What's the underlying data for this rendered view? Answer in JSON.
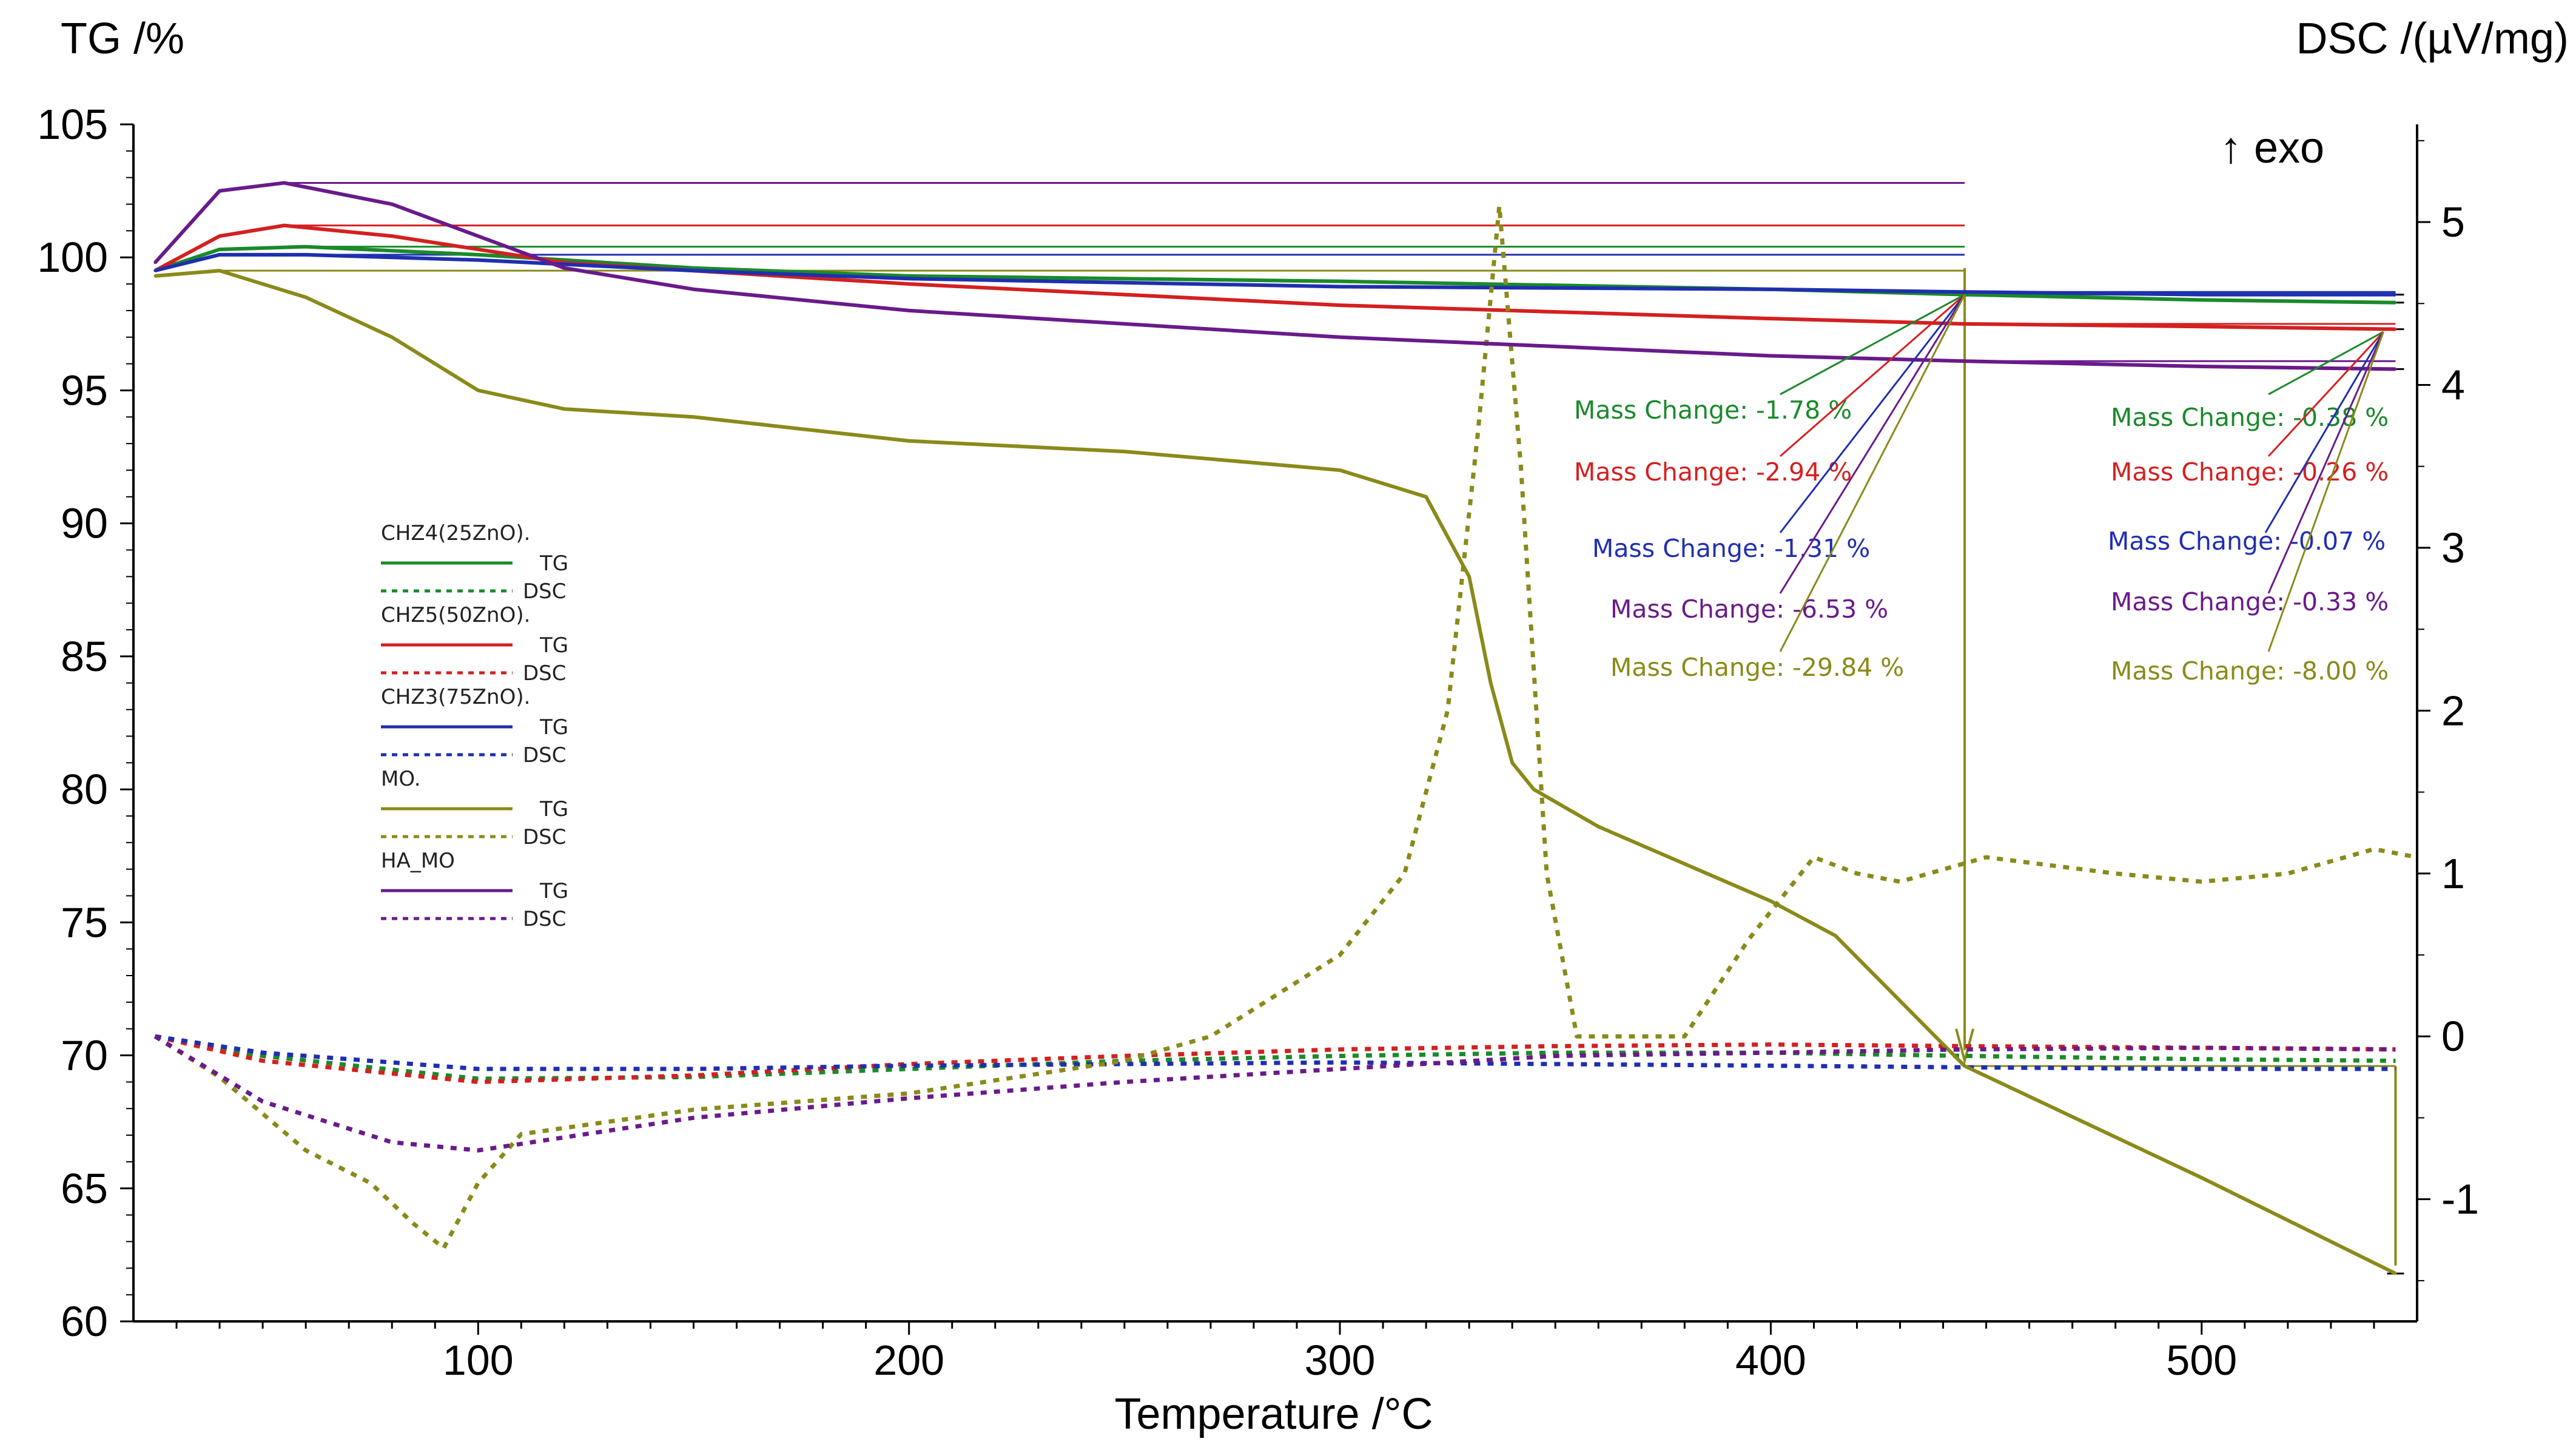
{
  "chart_data": {
    "type": "line",
    "title": "",
    "xlabel": "Temperature /°C",
    "ylabel_left": "TG /%",
    "ylabel_right": "DSC /(µV/mg)",
    "exo_label": "↑ exo",
    "xlim": [
      20,
      550
    ],
    "ylim_left": [
      60,
      105
    ],
    "ylim_right": [
      -1.75,
      5.6
    ],
    "x_ticks": [
      100,
      200,
      300,
      400,
      500
    ],
    "y_left_ticks": [
      60,
      65,
      70,
      75,
      80,
      85,
      90,
      95,
      100,
      105
    ],
    "y_right_ticks": [
      -1,
      0,
      1,
      2,
      3,
      4,
      5
    ],
    "legend_sublabels": {
      "tg": "TG",
      "dsc": "DSC"
    },
    "series": [
      {
        "name": "CHZ4(25ZnO).",
        "color": "#1a8a2a",
        "tg": {
          "x": [
            25,
            40,
            60,
            100,
            150,
            200,
            300,
            400,
            445,
            500,
            545
          ],
          "y": [
            99.5,
            100.3,
            100.4,
            100.1,
            99.6,
            99.3,
            99.1,
            98.8,
            98.6,
            98.4,
            98.3
          ]
        },
        "dsc": {
          "x": [
            25,
            50,
            100,
            150,
            200,
            250,
            300,
            350,
            400,
            445,
            500,
            545
          ],
          "y": [
            0,
            -0.12,
            -0.26,
            -0.25,
            -0.2,
            -0.15,
            -0.12,
            -0.1,
            -0.1,
            -0.12,
            -0.14,
            -0.15
          ]
        }
      },
      {
        "name": "CHZ5(50ZnO).",
        "color": "#d42020",
        "tg": {
          "x": [
            25,
            40,
            55,
            80,
            120,
            200,
            300,
            400,
            445,
            500,
            545
          ],
          "y": [
            99.5,
            100.8,
            101.2,
            100.8,
            99.8,
            99.0,
            98.2,
            97.7,
            97.5,
            97.4,
            97.3
          ]
        },
        "dsc": {
          "x": [
            25,
            50,
            100,
            150,
            200,
            250,
            300,
            350,
            400,
            445,
            500,
            545
          ],
          "y": [
            0,
            -0.15,
            -0.28,
            -0.24,
            -0.17,
            -0.12,
            -0.08,
            -0.06,
            -0.05,
            -0.06,
            -0.07,
            -0.08
          ]
        }
      },
      {
        "name": "CHZ3(75ZnO).",
        "color": "#1f2fb0",
        "tg": {
          "x": [
            25,
            40,
            60,
            100,
            150,
            200,
            300,
            400,
            445,
            500,
            545
          ],
          "y": [
            99.5,
            100.1,
            100.1,
            99.9,
            99.5,
            99.2,
            98.9,
            98.8,
            98.7,
            98.6,
            98.6
          ]
        },
        "dsc": {
          "x": [
            25,
            50,
            100,
            150,
            200,
            250,
            300,
            350,
            400,
            445,
            500,
            545
          ],
          "y": [
            0,
            -0.1,
            -0.2,
            -0.2,
            -0.18,
            -0.17,
            -0.16,
            -0.17,
            -0.18,
            -0.19,
            -0.2,
            -0.2
          ]
        }
      },
      {
        "name": "MO.",
        "color": "#8a8a1a",
        "tg": {
          "x": [
            25,
            40,
            60,
            80,
            100,
            120,
            150,
            200,
            250,
            300,
            320,
            330,
            335,
            340,
            345,
            360,
            400,
            415,
            445,
            500,
            545
          ],
          "y": [
            99.3,
            99.5,
            98.5,
            97.0,
            95.0,
            94.3,
            94.0,
            93.1,
            92.7,
            92.0,
            91.0,
            88.0,
            84.0,
            81.0,
            80.0,
            78.6,
            75.8,
            74.5,
            69.6,
            65.4,
            61.8
          ]
        },
        "dsc": {
          "x": [
            25,
            40,
            60,
            75,
            85,
            92,
            100,
            110,
            150,
            200,
            250,
            270,
            300,
            315,
            325,
            332,
            337,
            342,
            348,
            355,
            380,
            395,
            410,
            420,
            430,
            450,
            480,
            500,
            520,
            540,
            550
          ],
          "y": [
            0,
            -0.25,
            -0.7,
            -0.9,
            -1.15,
            -1.3,
            -0.9,
            -0.6,
            -0.45,
            -0.35,
            -0.15,
            0,
            0.5,
            1.0,
            2.0,
            3.7,
            5.1,
            3.5,
            1.0,
            0,
            0,
            0.6,
            1.1,
            1.0,
            0.95,
            1.1,
            1.0,
            0.95,
            1.0,
            1.15,
            1.1
          ]
        }
      },
      {
        "name": "HA_MO",
        "color": "#6a1a8a",
        "tg": {
          "x": [
            25,
            40,
            55,
            80,
            120,
            150,
            200,
            300,
            400,
            445,
            500,
            545
          ],
          "y": [
            99.8,
            102.5,
            102.8,
            102.0,
            99.6,
            98.8,
            98.0,
            97.0,
            96.3,
            96.1,
            95.9,
            95.8
          ]
        },
        "dsc": {
          "x": [
            25,
            50,
            80,
            100,
            120,
            150,
            200,
            250,
            300,
            350,
            400,
            445,
            500,
            545
          ],
          "y": [
            0,
            -0.4,
            -0.65,
            -0.7,
            -0.62,
            -0.5,
            -0.38,
            -0.28,
            -0.2,
            -0.12,
            -0.1,
            -0.08,
            -0.07,
            -0.08
          ]
        }
      }
    ],
    "annotations_step1": [
      {
        "text": "Mass Change: -1.78 %",
        "color": "#1a8a2a"
      },
      {
        "text": "Mass Change: -2.94 %",
        "color": "#d42020"
      },
      {
        "text": "Mass Change: -1.31 %",
        "color": "#1f2fb0"
      },
      {
        "text": "Mass Change: -6.53 %",
        "color": "#6a1a8a"
      },
      {
        "text": "Mass Change: -29.84 %",
        "color": "#8a8a1a"
      }
    ],
    "annotations_step2": [
      {
        "text": "Mass Change: -0.38 %",
        "color": "#1a8a2a"
      },
      {
        "text": "Mass Change: -0.26 %",
        "color": "#d42020"
      },
      {
        "text": "Mass Change: -0.07 %",
        "color": "#1f2fb0"
      },
      {
        "text": "Mass Change: -0.33 %",
        "color": "#6a1a8a"
      },
      {
        "text": "Mass Change: -8.00 %",
        "color": "#8a8a1a"
      }
    ]
  }
}
